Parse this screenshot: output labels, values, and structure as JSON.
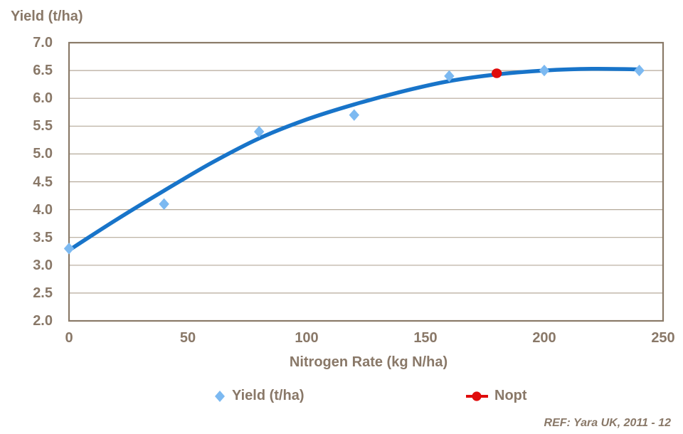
{
  "colors": {
    "text": "#897868",
    "grid": "#b5a99a",
    "border": "#8a7a68",
    "curve": "#1874c9",
    "marker": "#7cb9f1",
    "nopt": "#e00b0b",
    "background": "#ffffff"
  },
  "chart_data": {
    "type": "scatter",
    "title": "",
    "ylabel": "Yield (t/ha)",
    "xlabel": "Nitrogen Rate (kg N/ha)",
    "xlim": [
      0,
      250
    ],
    "ylim": [
      2.0,
      7.0
    ],
    "x_ticks": [
      "0",
      "50",
      "100",
      "150",
      "200",
      "250"
    ],
    "y_ticks": [
      "7.0",
      "6.5",
      "6.0",
      "5.5",
      "5.0",
      "4.5",
      "4.0",
      "3.5",
      "3.0",
      "2.5",
      "2.0"
    ],
    "grid": "horizontal-only",
    "legend_position": "bottom",
    "series": [
      {
        "name": "Yield (t/ha)",
        "type": "scatter",
        "marker": "diamond",
        "x": [
          0,
          40,
          80,
          120,
          160,
          200,
          240
        ],
        "y": [
          3.3,
          4.1,
          5.4,
          5.7,
          6.4,
          6.5,
          6.5
        ]
      },
      {
        "name": "Nopt",
        "type": "point",
        "marker": "circle",
        "x": [
          180
        ],
        "y": [
          6.45
        ]
      },
      {
        "name": "fitted-response-curve",
        "type": "line",
        "x": [
          0,
          20,
          40,
          60,
          80,
          100,
          120,
          140,
          160,
          180,
          200,
          220,
          240
        ],
        "y": [
          3.27,
          3.82,
          4.34,
          4.84,
          5.28,
          5.62,
          5.89,
          6.12,
          6.31,
          6.43,
          6.5,
          6.53,
          6.52
        ]
      }
    ]
  },
  "legend": {
    "items": [
      {
        "label": "Yield (t/ha)",
        "marker": "diamond"
      },
      {
        "label": "Nopt",
        "marker": "circle-line"
      }
    ]
  },
  "footer": {
    "ref_label": "REF: Yara UK, 2011 - 12"
  }
}
